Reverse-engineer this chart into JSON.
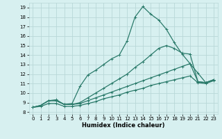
{
  "xlabel": "Humidex (Indice chaleur)",
  "bg_color": "#d7f0f0",
  "grid_color": "#b8d8d8",
  "line_color": "#2a7a6a",
  "xlim": [
    -0.5,
    23.5
  ],
  "ylim": [
    7.8,
    19.5
  ],
  "xticks": [
    0,
    1,
    2,
    3,
    4,
    5,
    6,
    7,
    8,
    9,
    10,
    11,
    12,
    13,
    14,
    15,
    16,
    17,
    18,
    19,
    20,
    21,
    22,
    23
  ],
  "yticks": [
    8,
    9,
    10,
    11,
    12,
    13,
    14,
    15,
    16,
    17,
    18,
    19
  ],
  "line_main_x": [
    0,
    1,
    2,
    3,
    4,
    5,
    6,
    7,
    8,
    9,
    10,
    11,
    12,
    13,
    14,
    15,
    16,
    17,
    18,
    19,
    20,
    21,
    22,
    23
  ],
  "line_main_y": [
    8.5,
    8.7,
    9.2,
    9.3,
    8.8,
    8.9,
    10.7,
    11.9,
    12.4,
    13.0,
    13.6,
    14.0,
    15.5,
    18.0,
    19.1,
    18.3,
    17.7,
    16.7,
    15.3,
    14.1,
    13.1,
    12.1,
    11.1,
    11.4
  ],
  "line_a_x": [
    0,
    1,
    2,
    3,
    4,
    5,
    6,
    7,
    8,
    9,
    10,
    11,
    12,
    13,
    14,
    15,
    16,
    17,
    18,
    19,
    20,
    21,
    22,
    23
  ],
  "line_a_y": [
    8.5,
    8.7,
    9.2,
    9.2,
    8.8,
    8.8,
    9.0,
    9.5,
    10.0,
    10.5,
    11.0,
    11.5,
    12.0,
    12.7,
    13.3,
    14.0,
    14.7,
    15.0,
    14.7,
    14.2,
    14.1,
    11.2,
    11.1,
    11.4
  ],
  "line_b_x": [
    0,
    1,
    2,
    3,
    4,
    5,
    6,
    7,
    8,
    9,
    10,
    11,
    12,
    13,
    14,
    15,
    16,
    17,
    18,
    19,
    20,
    21,
    22,
    23
  ],
  "line_b_y": [
    8.5,
    8.7,
    9.2,
    9.2,
    8.8,
    8.8,
    8.9,
    9.2,
    9.5,
    9.8,
    10.1,
    10.4,
    10.7,
    11.0,
    11.3,
    11.6,
    11.9,
    12.2,
    12.5,
    12.8,
    13.1,
    11.2,
    11.1,
    11.4
  ],
  "line_c_x": [
    0,
    1,
    2,
    3,
    4,
    5,
    6,
    7,
    8,
    9,
    10,
    11,
    12,
    13,
    14,
    15,
    16,
    17,
    18,
    19,
    20,
    21,
    22,
    23
  ],
  "line_c_y": [
    8.5,
    8.6,
    8.9,
    8.9,
    8.6,
    8.6,
    8.7,
    8.9,
    9.1,
    9.4,
    9.6,
    9.8,
    10.1,
    10.3,
    10.5,
    10.8,
    11.0,
    11.2,
    11.4,
    11.6,
    11.8,
    11.1,
    11.0,
    11.3
  ],
  "marker_size": 2.5,
  "line_width": 0.9
}
